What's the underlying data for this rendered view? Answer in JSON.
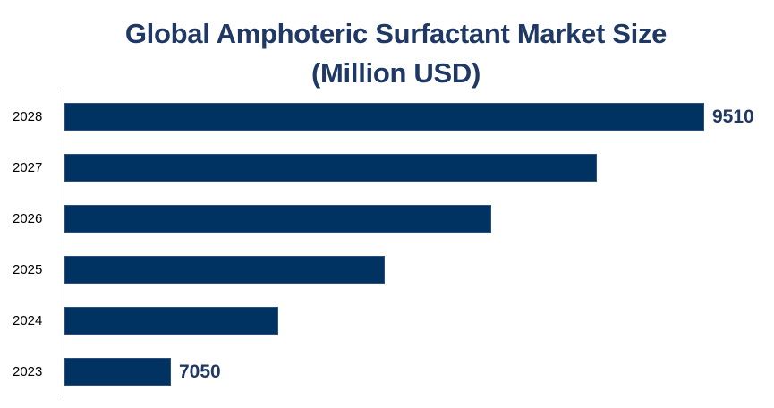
{
  "title_line1": "Global Amphoteric Surfactant Market Size",
  "title_line2": "(Million USD)",
  "colors": {
    "bar": "#003262",
    "title": "#1f3864",
    "label": "#1f3864",
    "axis": "#7f7f7f"
  },
  "chart_data": {
    "type": "bar",
    "orientation": "horizontal",
    "title": "Global Amphoteric Surfactant Market Size (Million USD)",
    "xlabel": "",
    "ylabel": "",
    "categories": [
      "2028",
      "2027",
      "2026",
      "2025",
      "2024",
      "2023"
    ],
    "values": [
      9510,
      9015,
      8528,
      8037,
      7546,
      7050
    ],
    "data_labels": {
      "2028": "9510",
      "2023": "7050"
    },
    "grid": false,
    "legend": null
  },
  "rows": [
    {
      "year": "2028",
      "value": 9510,
      "label": "9510"
    },
    {
      "year": "2027",
      "value": 9015,
      "label": ""
    },
    {
      "year": "2026",
      "value": 8528,
      "label": ""
    },
    {
      "year": "2025",
      "value": 8037,
      "label": ""
    },
    {
      "year": "2024",
      "value": 7546,
      "label": ""
    },
    {
      "year": "2023",
      "value": 7050,
      "label": "7050"
    }
  ]
}
